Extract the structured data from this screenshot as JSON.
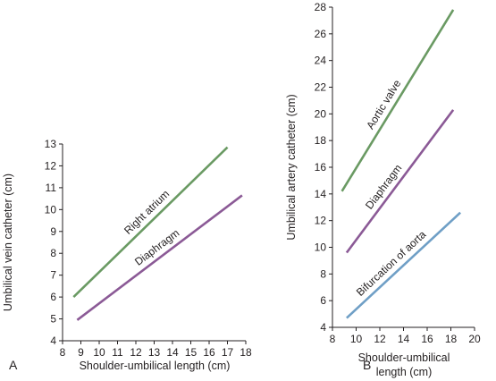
{
  "chart_data": [
    {
      "type": "line",
      "panel_label": "A",
      "xlabel": "Shoulder-umbilical length (cm)",
      "ylabel": "Umbilical vein catheter (cm)",
      "xlim": [
        8,
        18
      ],
      "ylim": [
        4,
        13
      ],
      "xticks": [
        "8",
        "9",
        "10",
        "11",
        "12",
        "13",
        "14",
        "15",
        "16",
        "17",
        "18"
      ],
      "yticks": [
        "4",
        "5",
        "6",
        "7",
        "8",
        "9",
        "10",
        "11",
        "12",
        "13"
      ],
      "grid": false,
      "series": [
        {
          "name": "Right atrium",
          "color": "#6a9a63",
          "x": [
            8.6,
            17.0
          ],
          "y": [
            6.0,
            12.85
          ]
        },
        {
          "name": "Diaphragm",
          "color": "#8b5a96",
          "x": [
            8.8,
            17.8
          ],
          "y": [
            4.95,
            10.65
          ]
        }
      ]
    },
    {
      "type": "line",
      "panel_label": "B",
      "xlabel": [
        "Shoulder-umbilical",
        "length (cm)"
      ],
      "ylabel": "Umbilical artery catheter (cm)",
      "xlim": [
        8,
        20
      ],
      "ylim": [
        4,
        28
      ],
      "xticks": [
        "8",
        "10",
        "12",
        "14",
        "16",
        "18",
        "20"
      ],
      "yticks": [
        "4",
        "6",
        "8",
        "10",
        "12",
        "14",
        "16",
        "18",
        "20",
        "22",
        "24",
        "26",
        "28"
      ],
      "grid": false,
      "series": [
        {
          "name": "Aortic valve",
          "color": "#6a9a63",
          "x": [
            8.8,
            18.2
          ],
          "y": [
            14.2,
            27.8
          ]
        },
        {
          "name": "Diaphragm",
          "color": "#8b5a96",
          "x": [
            9.2,
            18.2
          ],
          "y": [
            9.6,
            20.3
          ]
        },
        {
          "name": "Bifurcation of aorta",
          "color": "#6f9fc6",
          "x": [
            9.2,
            18.8
          ],
          "y": [
            4.7,
            12.6
          ]
        }
      ]
    }
  ]
}
